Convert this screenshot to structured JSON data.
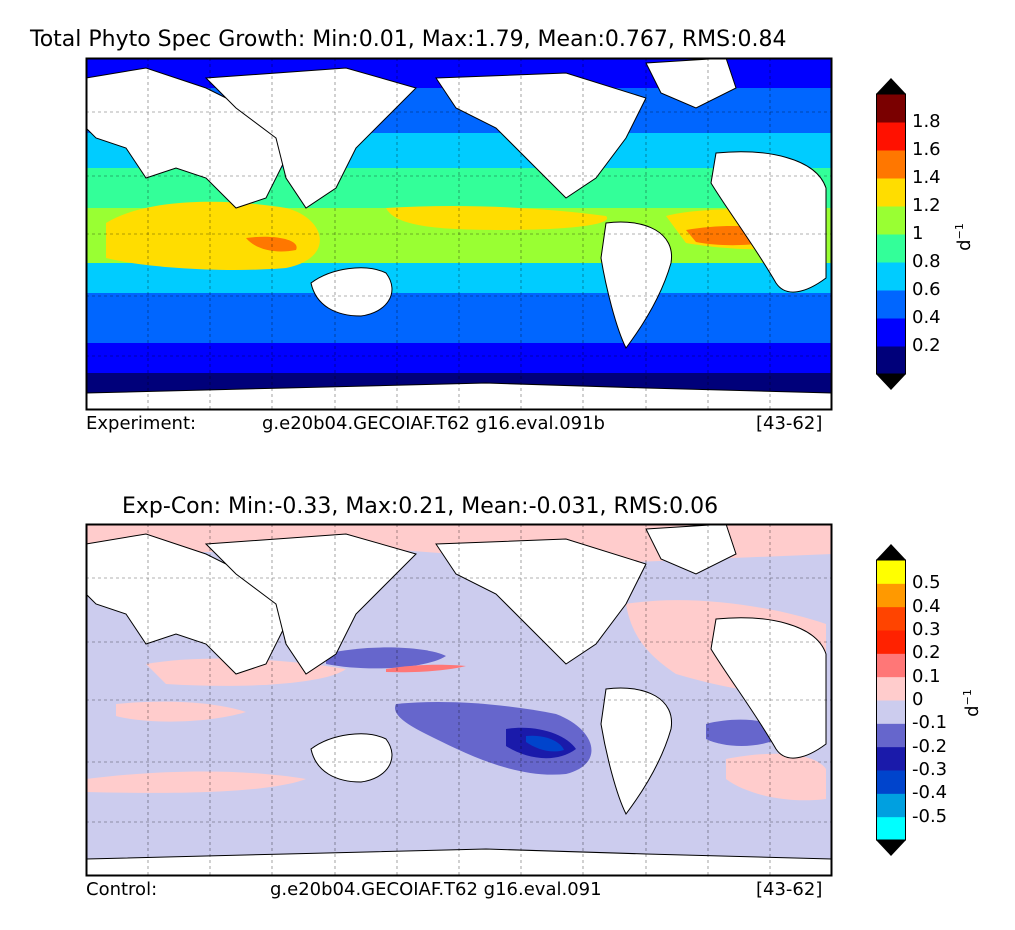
{
  "top": {
    "title": "Total Phyto Spec Growth: Min:0.01, Max:1.79, Mean:0.767, RMS:0.84",
    "footer_left": "Experiment:",
    "footer_center": "g.e20b04.GECOIAF.T62 g16.eval.091b",
    "footer_right": "[43-62]",
    "unit": "d",
    "unit_exp": "−1",
    "colorbar": {
      "colors": [
        "#00007a",
        "#0000ff",
        "#0066ff",
        "#00ccff",
        "#33ff99",
        "#99ff33",
        "#ffdd00",
        "#ff7700",
        "#ff1100",
        "#7a0000"
      ],
      "ticks": [
        "1.8",
        "1.6",
        "1.4",
        "1.2",
        "1",
        "0.8",
        "0.6",
        "0.4",
        "0.2"
      ]
    }
  },
  "bottom": {
    "title": "Exp-Con: Min:-0.33, Max:0.21, Mean:-0.031, RMS:0.06",
    "footer_left": "Control:",
    "footer_center": "g.e20b04.GECOIAF.T62 g16.eval.091",
    "footer_right": "[43-62]",
    "unit": "d",
    "unit_exp": "−1",
    "colorbar": {
      "colors": [
        "#00ffff",
        "#00a0e0",
        "#0044cc",
        "#1a1aaa",
        "#6666cc",
        "#ccccee",
        "#ffcccc",
        "#ff7777",
        "#ff2200",
        "#ff4400",
        "#ff9900",
        "#ffff00"
      ],
      "ticks": [
        "0.5",
        "0.4",
        "0.3",
        "0.2",
        "0.1",
        "0",
        "-0.1",
        "-0.2",
        "-0.3",
        "-0.4",
        "-0.5"
      ]
    }
  }
}
